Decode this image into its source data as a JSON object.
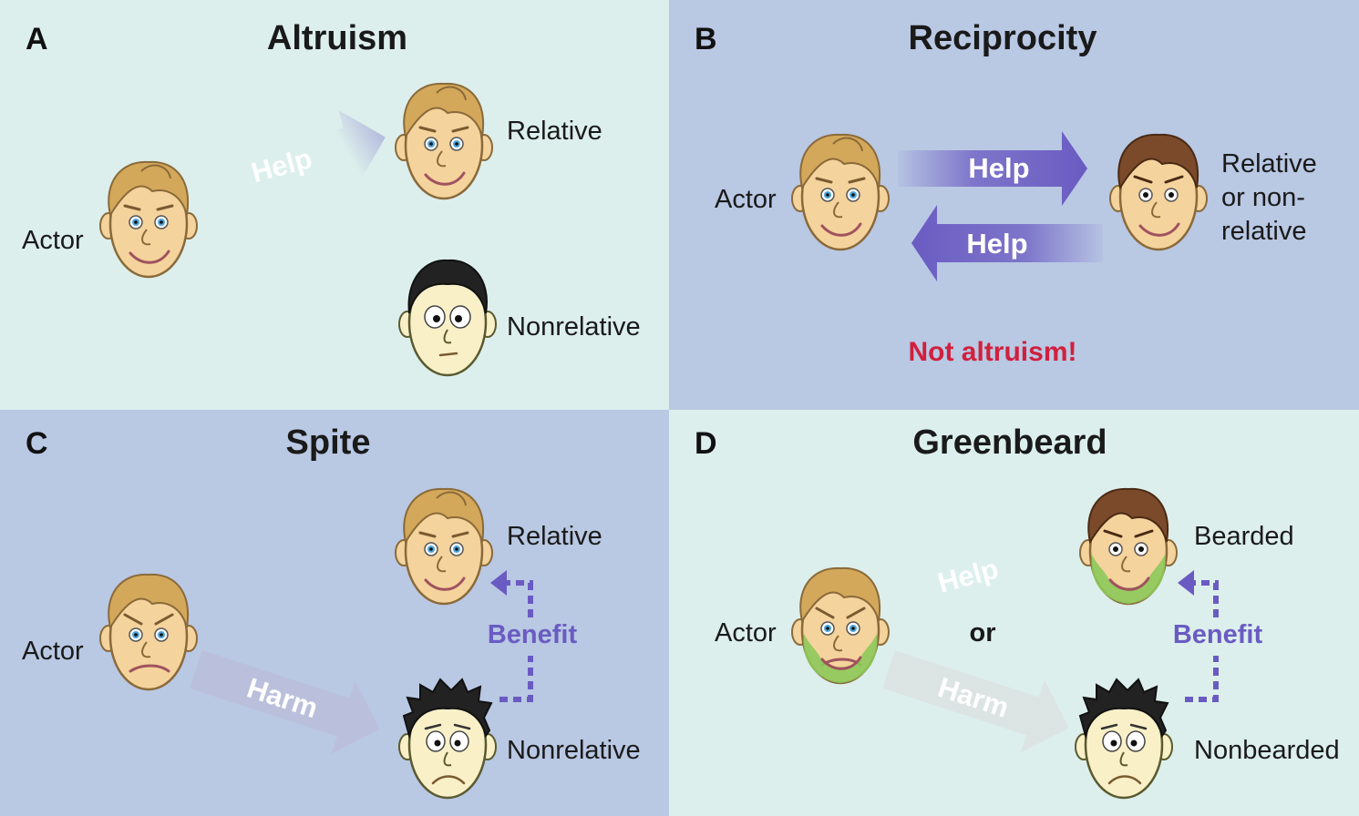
{
  "colors": {
    "mint": "#dcefec",
    "lavender": "#b9c8e3",
    "help_arrow": "#7b6cc8",
    "harm_arrow": "#d41f3f",
    "benefit": "#6a5bc2",
    "warning": "#d0203e",
    "beard": "#8dc95a"
  },
  "panels": {
    "a": {
      "letter": "A",
      "title": "Altruism",
      "actor": "Actor",
      "top_label": "Relative",
      "bottom_label": "Nonrelative",
      "arrow": "Help"
    },
    "b": {
      "letter": "B",
      "title": "Reciprocity",
      "actor": "Actor",
      "target_line1": "Relative",
      "target_line2": "or non-",
      "target_line3": "relative",
      "arrow_right": "Help",
      "arrow_left": "Help",
      "note": "Not altruism!"
    },
    "c": {
      "letter": "C",
      "title": "Spite",
      "actor": "Actor",
      "top_label": "Relative",
      "bottom_label": "Nonrelative",
      "arrow": "Harm",
      "benefit": "Benefit"
    },
    "d": {
      "letter": "D",
      "title": "Greenbeard",
      "actor": "Actor",
      "top_label": "Bearded",
      "bottom_label": "Nonbearded",
      "arrow_help": "Help",
      "arrow_harm": "Harm",
      "or": "or",
      "benefit": "Benefit"
    }
  }
}
